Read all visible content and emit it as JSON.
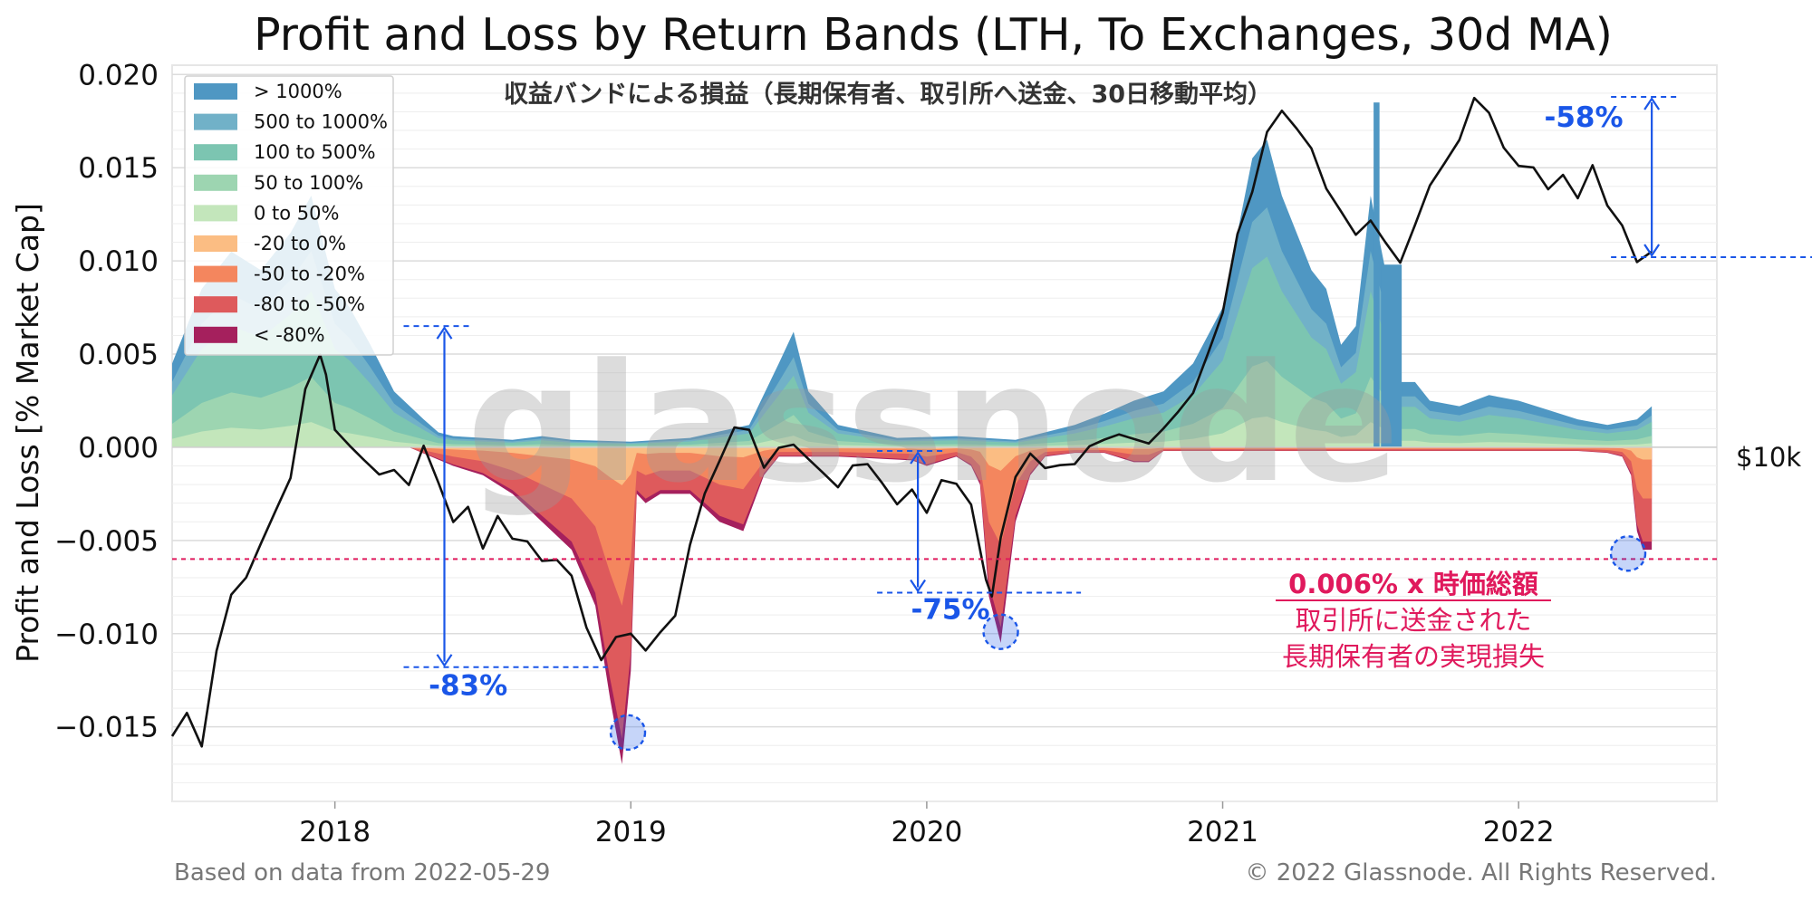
{
  "chart_data": {
    "type": "area",
    "title": "Profit and Loss by Return Bands (LTH, To Exchanges, 30d MA)",
    "subtitle": "収益バンドによる損益（長期保有者、取引所へ送金、30日移動平均）",
    "ylabel": "Profit and Loss [% Market Cap]",
    "right_label": "$10k",
    "footer_left": "Based on data from 2022-05-29",
    "footer_right": "© 2022 Glassnode. All Rights Reserved.",
    "watermark": "glassnode",
    "ylim": [
      -0.019,
      0.0205
    ],
    "yticks": [
      0.02,
      0.015,
      0.01,
      0.005,
      0.0,
      -0.005,
      -0.01,
      -0.015
    ],
    "ytick_labels": [
      "0.020",
      "0.015",
      "0.010",
      "0.005",
      "0.000",
      "−0.005",
      "−0.010",
      "−0.015"
    ],
    "xlim": [
      2017.45,
      2022.67
    ],
    "xticks": [
      2018,
      2019,
      2020,
      2021,
      2022
    ],
    "xtick_labels": [
      "2018",
      "2019",
      "2020",
      "2021",
      "2022"
    ],
    "legend_position": "top-left",
    "bands": [
      {
        "name": "> 1000%",
        "color": "#4f97c3"
      },
      {
        "name": "500 to 1000%",
        "color": "#71b1c8"
      },
      {
        "name": "100 to 500%",
        "color": "#7cc5b1"
      },
      {
        "name": "50 to 100%",
        "color": "#9dd5b1"
      },
      {
        "name": "0 to 50%",
        "color": "#c3e6bb"
      },
      {
        "name": "-20 to 0%",
        "color": "#fbbd83"
      },
      {
        "name": "-50 to -20%",
        "color": "#f4865e"
      },
      {
        "name": "-80 to -50%",
        "color": "#de5a5c"
      },
      {
        "name": "< -80%",
        "color": "#a5205d"
      }
    ],
    "profit_total": {
      "x": [
        2017.45,
        2017.55,
        2017.65,
        2017.75,
        2017.85,
        2017.92,
        2018.0,
        2018.05,
        2018.12,
        2018.2,
        2018.3,
        2018.35,
        2018.4,
        2018.5,
        2018.6,
        2018.7,
        2018.8,
        2019.0,
        2019.2,
        2019.4,
        2019.5,
        2019.55,
        2019.6,
        2019.7,
        2019.9,
        2020.1,
        2020.3,
        2020.5,
        2020.6,
        2020.7,
        2020.8,
        2020.9,
        2021.0,
        2021.05,
        2021.1,
        2021.15,
        2021.2,
        2021.3,
        2021.35,
        2021.4,
        2021.45,
        2021.5,
        2021.55,
        2021.58,
        2021.6,
        2021.65,
        2021.7,
        2021.8,
        2021.9,
        2022.0,
        2022.1,
        2022.2,
        2022.3,
        2022.4,
        2022.45
      ],
      "values": [
        0.0045,
        0.0085,
        0.0105,
        0.0095,
        0.0115,
        0.0135,
        0.0085,
        0.0075,
        0.0055,
        0.003,
        0.0015,
        0.0008,
        0.0006,
        0.0005,
        0.0004,
        0.0006,
        0.0004,
        0.0003,
        0.0005,
        0.0012,
        0.0045,
        0.0062,
        0.003,
        0.0012,
        0.0005,
        0.0006,
        0.0004,
        0.0012,
        0.0018,
        0.0025,
        0.003,
        0.0045,
        0.0075,
        0.0115,
        0.0155,
        0.0165,
        0.0135,
        0.0095,
        0.0085,
        0.0055,
        0.0065,
        0.0135,
        0.0095,
        0.0075,
        0.0035,
        0.0035,
        0.0025,
        0.0022,
        0.0028,
        0.0025,
        0.002,
        0.0015,
        0.0012,
        0.0015,
        0.0022
      ]
    },
    "profit_spikes": [
      {
        "x": 2021.52,
        "value": 0.0185,
        "width": 0.02
      },
      {
        "x": 2021.57,
        "value": 0.0098,
        "width": 0.07
      }
    ],
    "loss_total": {
      "x": [
        2017.45,
        2018.25,
        2018.4,
        2018.5,
        2018.6,
        2018.7,
        2018.8,
        2018.88,
        2018.93,
        2018.97,
        2019.0,
        2019.02,
        2019.05,
        2019.1,
        2019.2,
        2019.3,
        2019.38,
        2019.45,
        2019.5,
        2019.7,
        2019.95,
        2020.0,
        2020.1,
        2020.15,
        2020.18,
        2020.21,
        2020.25,
        2020.3,
        2020.35,
        2020.4,
        2020.5,
        2020.6,
        2020.7,
        2020.75,
        2020.8,
        2021.0,
        2022.2,
        2022.3,
        2022.35,
        2022.38,
        2022.4,
        2022.42,
        2022.45
      ],
      "values": [
        0.0,
        0.0,
        -0.001,
        -0.0015,
        -0.0025,
        -0.004,
        -0.0055,
        -0.0085,
        -0.0135,
        -0.017,
        -0.012,
        -0.0025,
        -0.003,
        -0.0025,
        -0.0025,
        -0.004,
        -0.0045,
        -0.0015,
        -0.0005,
        -0.0005,
        -0.0007,
        -0.001,
        -0.0005,
        -0.001,
        -0.002,
        -0.008,
        -0.0105,
        -0.004,
        -0.0015,
        -0.0005,
        -0.0003,
        -0.0003,
        -0.0008,
        -0.0008,
        -0.0002,
        -0.0002,
        -0.0002,
        -0.0003,
        -0.0005,
        -0.0015,
        -0.0045,
        -0.0055,
        -0.0055
      ]
    },
    "price_line": {
      "name": "$10k",
      "x": [
        2017.45,
        2017.5,
        2017.55,
        2017.6,
        2017.65,
        2017.7,
        2017.75,
        2017.8,
        2017.85,
        2017.9,
        2017.95,
        2017.97,
        2018.0,
        2018.05,
        2018.1,
        2018.15,
        2018.2,
        2018.25,
        2018.3,
        2018.35,
        2018.4,
        2018.45,
        2018.5,
        2018.55,
        2018.6,
        2018.65,
        2018.7,
        2018.75,
        2018.8,
        2018.85,
        2018.9,
        2018.95,
        2019.0,
        2019.05,
        2019.1,
        2019.15,
        2019.2,
        2019.25,
        2019.3,
        2019.35,
        2019.4,
        2019.45,
        2019.5,
        2019.55,
        2019.6,
        2019.65,
        2019.7,
        2019.75,
        2019.8,
        2019.85,
        2019.9,
        2019.95,
        2020.0,
        2020.05,
        2020.1,
        2020.15,
        2020.2,
        2020.22,
        2020.25,
        2020.3,
        2020.35,
        2020.4,
        2020.45,
        2020.5,
        2020.55,
        2020.6,
        2020.65,
        2020.7,
        2020.75,
        2020.8,
        2020.85,
        2020.9,
        2020.95,
        2021.0,
        2021.05,
        2021.1,
        2021.15,
        2021.2,
        2021.25,
        2021.3,
        2021.35,
        2021.4,
        2021.45,
        2021.5,
        2021.55,
        2021.6,
        2021.65,
        2021.7,
        2021.75,
        2021.8,
        2021.85,
        2021.9,
        2021.95,
        2022.0,
        2022.05,
        2022.1,
        2022.15,
        2022.2,
        2022.25,
        2022.3,
        2022.35,
        2022.4,
        2022.45
      ],
      "values": [
        -0.0155,
        -0.0145,
        -0.0165,
        -0.0115,
        -0.0085,
        -0.0075,
        -0.0055,
        -0.0035,
        -0.0015,
        0.0035,
        0.0055,
        0.0045,
        0.0015,
        0.0005,
        -0.0005,
        -0.0015,
        -0.0015,
        -0.0025,
        -0.0005,
        -0.0025,
        -0.0045,
        -0.0035,
        -0.0055,
        -0.0035,
        -0.0045,
        -0.0045,
        -0.0055,
        -0.0055,
        -0.0065,
        -0.0095,
        -0.0115,
        -0.0105,
        -0.0105,
        -0.0115,
        -0.0105,
        -0.0095,
        -0.0055,
        -0.0025,
        -0.0005,
        0.0015,
        0.0015,
        -0.0005,
        0.0005,
        0.0005,
        -0.0005,
        -0.0015,
        -0.0025,
        -0.0015,
        -0.0015,
        -0.0025,
        -0.0035,
        -0.0025,
        -0.0035,
        -0.0015,
        -0.0015,
        -0.0025,
        -0.0065,
        -0.0075,
        -0.0045,
        -0.0015,
        -0.0005,
        -0.0015,
        -0.0015,
        -0.0015,
        -0.0005,
        0.0,
        0.0005,
        0.0005,
        0.0005,
        0.0015,
        0.0025,
        0.0035,
        0.0055,
        0.0075,
        0.0115,
        0.0135,
        0.0165,
        0.0175,
        0.0165,
        0.0155,
        0.0135,
        0.0125,
        0.0115,
        0.0125,
        0.0115,
        0.0105,
        0.0125,
        0.0145,
        0.0155,
        0.0165,
        0.0185,
        0.0175,
        0.0155,
        0.0145,
        0.0145,
        0.0135,
        0.0145,
        0.0135,
        0.0155,
        0.0135,
        0.0125,
        0.0105,
        0.0105
      ]
    },
    "reference_line": {
      "y": -0.006,
      "color": "#e0195c"
    },
    "annotations": [
      {
        "label": "-83%",
        "x": 2018.37,
        "y_top": 0.0065,
        "y_bottom": -0.0118,
        "label_x": 2018.45,
        "label_y": -0.0133
      },
      {
        "label": "-75%",
        "x": 2019.97,
        "y_top": -0.0002,
        "y_bottom": -0.0078,
        "label_x": 2020.08,
        "label_y": -0.0092
      },
      {
        "label": "-58%",
        "x": 2022.45,
        "y_top": 0.0188,
        "y_bottom": 0.0102,
        "label_x": 2022.22,
        "label_y": 0.0172
      }
    ],
    "circles": [
      {
        "x": 2018.99,
        "y": -0.0153
      },
      {
        "x": 2020.25,
        "y": -0.0099
      },
      {
        "x": 2022.37,
        "y": -0.0057
      }
    ],
    "annotation_text": {
      "line1": "0.006% x 時価総額",
      "line2": "取引所に送金された",
      "line3": "長期保有者の実現損失"
    }
  }
}
